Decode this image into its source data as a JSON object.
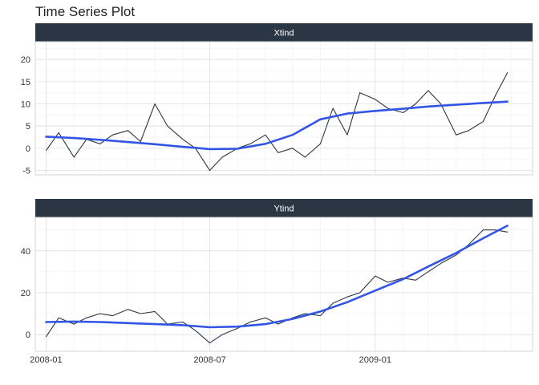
{
  "chart_data": {
    "type": "line",
    "title": "Time Series Plot",
    "xlabel": "",
    "ylabel": "",
    "x_range": [
      "2007-12-20",
      "2009-06-25"
    ],
    "x_ticks": [
      "2008-01",
      "2008-07",
      "2009-01"
    ],
    "grid": true,
    "colors": {
      "raw": "#2b3645",
      "smooth": "#3355e6",
      "strip": "#2b3645",
      "grid": "#e2e2e2"
    },
    "panels": [
      {
        "name": "Xtind",
        "ylim": [
          -6,
          24
        ],
        "y_ticks": [
          -5,
          0,
          5,
          10,
          15,
          20
        ],
        "series": [
          {
            "kind": "raw",
            "x": [
              "2008-01-01",
              "2008-01-15",
              "2008-02-01",
              "2008-02-15",
              "2008-03-01",
              "2008-03-15",
              "2008-04-01",
              "2008-04-15",
              "2008-05-01",
              "2008-05-15",
              "2008-06-01",
              "2008-06-15",
              "2008-07-01",
              "2008-07-15",
              "2008-08-01",
              "2008-08-15",
              "2008-09-01",
              "2008-09-15",
              "2008-10-01",
              "2008-10-15",
              "2008-11-01",
              "2008-11-15",
              "2008-12-01",
              "2008-12-15",
              "2009-01-01",
              "2009-01-15",
              "2009-02-01",
              "2009-02-15",
              "2009-03-01",
              "2009-03-15",
              "2009-04-01",
              "2009-04-15",
              "2009-05-01",
              "2009-05-15",
              "2009-05-28"
            ],
            "values": [
              -0.5,
              3.5,
              -2,
              2,
              1,
              3,
              4,
              1.5,
              10,
              5,
              2,
              0,
              -5,
              -2,
              0,
              1,
              3,
              -1,
              0,
              -2,
              1,
              9,
              3,
              12.5,
              11,
              9,
              8,
              10,
              13,
              10,
              3,
              4,
              6,
              12,
              17
            ]
          },
          {
            "kind": "smooth",
            "x": [
              "2008-01-01",
              "2008-02-01",
              "2008-03-01",
              "2008-04-01",
              "2008-05-01",
              "2008-06-01",
              "2008-07-01",
              "2008-08-01",
              "2008-09-01",
              "2008-10-01",
              "2008-11-01",
              "2008-12-01",
              "2009-01-01",
              "2009-02-01",
              "2009-03-01",
              "2009-04-01",
              "2009-05-01",
              "2009-05-28"
            ],
            "values": [
              2.6,
              2.3,
              1.9,
              1.4,
              0.9,
              0.3,
              -0.2,
              -0.1,
              1,
              3,
              6.5,
              7.8,
              8.4,
              8.9,
              9.4,
              9.8,
              10.2,
              10.5
            ]
          }
        ]
      },
      {
        "name": "Ytind",
        "ylim": [
          -8,
          56
        ],
        "y_ticks": [
          0,
          20,
          40
        ],
        "series": [
          {
            "kind": "raw",
            "x": [
              "2008-01-01",
              "2008-01-15",
              "2008-02-01",
              "2008-02-15",
              "2008-03-01",
              "2008-03-15",
              "2008-04-01",
              "2008-04-15",
              "2008-05-01",
              "2008-05-15",
              "2008-06-01",
              "2008-06-15",
              "2008-07-01",
              "2008-07-15",
              "2008-08-01",
              "2008-08-15",
              "2008-09-01",
              "2008-09-15",
              "2008-10-01",
              "2008-10-15",
              "2008-11-01",
              "2008-11-15",
              "2008-12-01",
              "2008-12-15",
              "2009-01-01",
              "2009-01-15",
              "2009-02-01",
              "2009-02-15",
              "2009-03-01",
              "2009-03-15",
              "2009-04-01",
              "2009-04-15",
              "2009-05-01",
              "2009-05-15",
              "2009-05-28"
            ],
            "values": [
              -1,
              8,
              5,
              8,
              10,
              9,
              12,
              10,
              11,
              5,
              6,
              2,
              -4,
              0,
              3,
              6,
              8,
              5,
              8,
              10,
              9,
              15,
              18,
              20,
              28,
              25,
              27,
              26,
              30,
              34,
              38,
              43,
              50,
              50,
              49
            ]
          },
          {
            "kind": "smooth",
            "x": [
              "2008-01-01",
              "2008-02-01",
              "2008-03-01",
              "2008-04-01",
              "2008-05-01",
              "2008-06-01",
              "2008-07-01",
              "2008-08-01",
              "2008-09-01",
              "2008-10-01",
              "2008-11-01",
              "2008-12-01",
              "2009-01-01",
              "2009-02-01",
              "2009-03-01",
              "2009-04-01",
              "2009-05-01",
              "2009-05-28"
            ],
            "values": [
              6,
              6.2,
              6,
              5.5,
              5,
              4.5,
              3.5,
              3.8,
              5,
              7.5,
              11,
              15.5,
              21,
              26.5,
              32.5,
              39,
              46,
              52
            ]
          }
        ]
      }
    ]
  }
}
